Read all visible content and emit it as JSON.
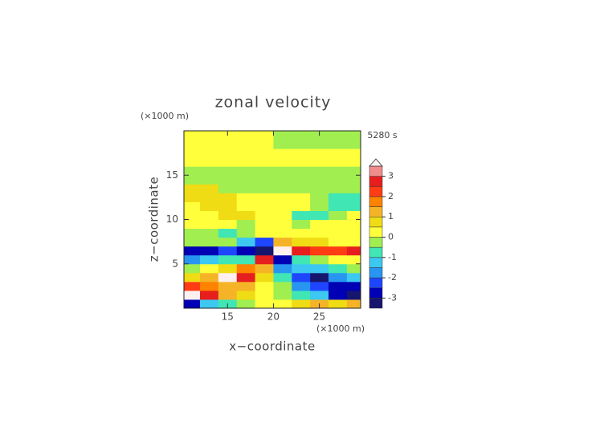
{
  "chart_data": {
    "type": "contour",
    "title": "zonal velocity",
    "x_label": "x−coordinate",
    "y_label": "z−coordinate",
    "x_unit": "(×1000 m)",
    "y_unit": "(×1000 m)",
    "time_label": "5280 s",
    "xlim": [
      10.25,
      29.5
    ],
    "ylim": [
      0,
      20
    ],
    "xticks": [
      15,
      20,
      25
    ],
    "yticks": [
      5,
      10,
      15
    ],
    "x": [
      11,
      13,
      15,
      17,
      19,
      21,
      23,
      25,
      27,
      29
    ],
    "y": [
      0.5,
      1.5,
      2.5,
      3.5,
      4.5,
      5.5,
      6.5,
      7.5,
      8.5,
      9.5,
      10.5,
      11.5,
      12.5,
      13.5,
      14.5,
      15.5,
      16.5,
      17.5,
      18.5,
      19.5
    ],
    "z": [
      [
        -2.7,
        -1.2,
        -0.7,
        -0.3,
        0.2,
        0.2,
        0.7,
        1.2,
        0.7,
        1.2
      ],
      [
        3.7,
        2.7,
        1.2,
        0.7,
        0.2,
        -0.3,
        -0.7,
        -1.2,
        -2.7,
        -3.7
      ],
      [
        2.2,
        1.7,
        1.2,
        1.2,
        0.3,
        -0.3,
        -1.7,
        -2.2,
        -2.7,
        -2.7
      ],
      [
        0.7,
        1.2,
        3.7,
        2.7,
        0.7,
        -0.7,
        -2.2,
        -3.7,
        -1.7,
        -1.2
      ],
      [
        -0.3,
        0.2,
        0.7,
        1.7,
        1.2,
        -1.7,
        -1.2,
        -1.2,
        -0.7,
        -0.3
      ],
      [
        -1.7,
        -1.2,
        -0.7,
        -0.7,
        2.7,
        -2.7,
        -0.7,
        -0.3,
        0.3,
        0.3
      ],
      [
        -2.7,
        -2.7,
        -2.2,
        -2.7,
        -3.7,
        3.7,
        2.7,
        2.2,
        2.2,
        2.7
      ],
      [
        -0.3,
        -0.3,
        -0.3,
        -1.2,
        -2.2,
        1.2,
        0.7,
        0.7,
        0.3,
        0.3
      ],
      [
        -0.3,
        -0.3,
        -0.7,
        -0.3,
        0.2,
        0.2,
        0.2,
        0.3,
        0.3,
        0.3
      ],
      [
        0.2,
        0.2,
        0.3,
        -0.3,
        0.2,
        0.2,
        -0.3,
        0.3,
        0.3,
        0.3
      ],
      [
        0.3,
        0.3,
        0.7,
        0.7,
        0.2,
        0.2,
        -0.7,
        -0.7,
        -0.3,
        0.2
      ],
      [
        0.3,
        0.7,
        0.7,
        0.2,
        0.2,
        0.2,
        0.2,
        -0.3,
        -0.7,
        -0.7
      ],
      [
        0.7,
        0.7,
        0.7,
        0.2,
        0.2,
        0.2,
        0.2,
        -0.3,
        -0.7,
        -0.7
      ],
      [
        0.7,
        0.7,
        -0.3,
        -0.3,
        -0.3,
        -0.3,
        -0.3,
        -0.3,
        -0.3,
        -0.3
      ],
      [
        -0.3,
        -0.3,
        -0.3,
        -0.3,
        -0.3,
        -0.3,
        -0.3,
        -0.3,
        -0.3,
        -0.3
      ],
      [
        -0.3,
        -0.3,
        -0.3,
        -0.3,
        -0.3,
        -0.3,
        -0.3,
        -0.3,
        -0.3,
        -0.3
      ],
      [
        0.2,
        0.2,
        0.2,
        0.2,
        0.2,
        0.2,
        0.2,
        0.2,
        0.2,
        0.2
      ],
      [
        0.2,
        0.2,
        0.2,
        0.2,
        0.2,
        0.2,
        0.2,
        0.2,
        0.2,
        0.2
      ],
      [
        0.3,
        0.3,
        0.3,
        0.3,
        0.3,
        -0.2,
        -0.2,
        -0.2,
        -0.2,
        -0.2
      ],
      [
        0.2,
        0.2,
        0.2,
        0.2,
        0.2,
        -0.2,
        -0.2,
        -0.2,
        -0.2,
        -0.2
      ]
    ],
    "clim": [
      -3.5,
      3.5
    ],
    "levels": [
      -3,
      -2.5,
      -2,
      -1.5,
      -1,
      -0.5,
      0,
      0.5,
      1,
      1.5,
      2,
      2.5,
      3,
      3.5
    ],
    "colors": [
      "#16166e",
      "#0000b4",
      "#1e46ff",
      "#2896f0",
      "#3cc8f0",
      "#40e6b4",
      "#a0ee50",
      "#ffff3c",
      "#f0dc14",
      "#f5b428",
      "#ff8200",
      "#ff3c14",
      "#e61e1e",
      "#f08c8c",
      "#fff0f0"
    ],
    "cbar_ticks": [
      -3,
      -2,
      -1,
      0,
      1,
      2,
      3
    ]
  }
}
